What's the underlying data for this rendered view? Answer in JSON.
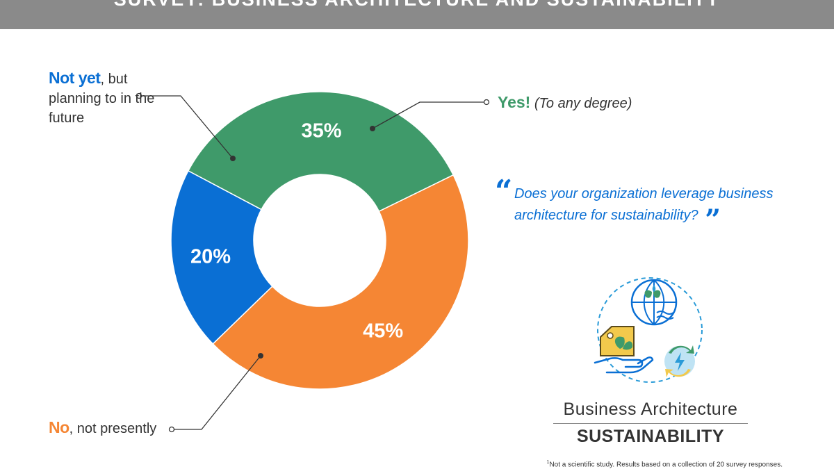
{
  "header": {
    "title": "SURVEY: BUSINESS ARCHITECTURE AND SUSTAINABILITY"
  },
  "chart_data": {
    "type": "pie",
    "donut": true,
    "slices": [
      {
        "label": "Yes!",
        "value": 35,
        "display": "35%",
        "color": "#3f9a6a"
      },
      {
        "label": "No",
        "value": 45,
        "display": "45%",
        "color": "#f58634"
      },
      {
        "label": "Not yet",
        "value": 20,
        "display": "20%",
        "color": "#0a6fd4"
      }
    ]
  },
  "legend": {
    "not_yet": {
      "lead": "Not yet",
      "rest": ", but planning to in the future"
    },
    "yes": {
      "lead": "Yes!",
      "rest": "(To any degree)"
    },
    "no": {
      "lead": "No",
      "rest": ", not presently"
    }
  },
  "question": {
    "open_quote": "“",
    "close_quote": "”",
    "text": "Does your organization leverage business architecture for sustainability?"
  },
  "brand": {
    "title": "Business Architecture",
    "subtitle": "SUSTAINABILITY"
  },
  "footnote": {
    "marker": "1",
    "text": "Not a scientific study. Results based on a collection of 20 survey responses."
  },
  "icons": [
    "globe-icon",
    "price-tag-leaf-icon",
    "hand-icon",
    "renewable-energy-icon"
  ]
}
